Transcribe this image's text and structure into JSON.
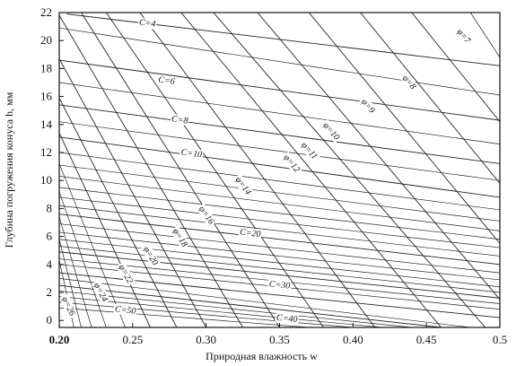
{
  "chart_data": {
    "type": "line",
    "title": "",
    "xlabel": "Природная влажность w",
    "ylabel": "Глубина погружения конуса h, мм",
    "xlim": [
      0.2,
      0.5
    ],
    "ylim": [
      -0.5,
      22
    ],
    "x_ticks": [
      "0.20",
      "0.25",
      "0.30",
      "0.35",
      "0.40",
      "0.45",
      "0.5"
    ],
    "y_ticks": [
      "0",
      "2",
      "4",
      "6",
      "8",
      "10",
      "12",
      "14",
      "16",
      "18",
      "20",
      "22"
    ],
    "grid": false,
    "c_series": [
      {
        "label": "C=4",
        "value": 4,
        "points": [
          [
            0.205,
            21.9
          ],
          [
            0.5,
            18.2
          ]
        ],
        "label_at": [
          0.26,
          21.2
        ]
      },
      {
        "label": "C=6",
        "value": 6,
        "points": [
          [
            0.2,
            18.6
          ],
          [
            0.5,
            14.3
          ]
        ],
        "label_at": [
          0.273,
          17.1
        ]
      },
      {
        "label": "C=8",
        "value": 8,
        "points": [
          [
            0.2,
            15.4
          ],
          [
            0.5,
            11.2
          ]
        ],
        "label_at": [
          0.282,
          14.3
        ]
      },
      {
        "label": "C=10",
        "value": 10,
        "points": [
          [
            0.2,
            13.1
          ],
          [
            0.5,
            8.8
          ]
        ],
        "label_at": [
          0.29,
          11.9
        ]
      },
      {
        "label": "C=20",
        "value": 20,
        "points": [
          [
            0.2,
            7.6
          ],
          [
            0.5,
            4.0
          ]
        ],
        "label_at": [
          0.33,
          6.2
        ]
      },
      {
        "label": "C=30",
        "value": 30,
        "points": [
          [
            0.2,
            4.9
          ],
          [
            0.5,
            1.6
          ]
        ],
        "label_at": [
          0.35,
          2.5
        ]
      },
      {
        "label": "C=40",
        "value": 40,
        "points": [
          [
            0.2,
            3.4
          ],
          [
            0.5,
            0.2
          ]
        ],
        "label_at": [
          0.355,
          0.1
        ]
      },
      {
        "label": "C=50",
        "value": 50,
        "points": [
          [
            0.2,
            2.5
          ],
          [
            0.46,
            -0.5
          ]
        ],
        "label_at": [
          0.245,
          0.7
        ]
      }
    ],
    "phi_series": [
      {
        "label": "φ=7",
        "value": 7,
        "points": [
          [
            0.44,
            22
          ],
          [
            0.5,
            14.2
          ]
        ],
        "label_at": [
          0.475,
          20.3
        ]
      },
      {
        "label": "φ=8",
        "value": 8,
        "points": [
          [
            0.405,
            22
          ],
          [
            0.5,
            9.8
          ]
        ],
        "label_at": [
          0.438,
          17.0
        ]
      },
      {
        "label": "φ=9",
        "value": 9,
        "points": [
          [
            0.37,
            22
          ],
          [
            0.5,
            5.5
          ]
        ],
        "label_at": [
          0.41,
          15.3
        ]
      },
      {
        "label": "φ=10",
        "value": 10,
        "points": [
          [
            0.335,
            22
          ],
          [
            0.5,
            1.5
          ]
        ],
        "label_at": [
          0.385,
          13.5
        ]
      },
      {
        "label": "φ=11",
        "value": 11,
        "points": [
          [
            0.305,
            22
          ],
          [
            0.49,
            -0.5
          ]
        ],
        "label_at": [
          0.37,
          12.1
        ]
      },
      {
        "label": "φ=12",
        "value": 12,
        "points": [
          [
            0.283,
            22
          ],
          [
            0.46,
            -0.5
          ]
        ],
        "label_at": [
          0.358,
          11.2
        ]
      },
      {
        "label": "φ=14",
        "value": 14,
        "points": [
          [
            0.255,
            22
          ],
          [
            0.415,
            -0.5
          ]
        ],
        "label_at": [
          0.325,
          9.6
        ]
      },
      {
        "label": "φ=16",
        "value": 16,
        "points": [
          [
            0.232,
            22
          ],
          [
            0.38,
            -0.5
          ]
        ],
        "label_at": [
          0.3,
          7.5
        ]
      },
      {
        "label": "φ=18",
        "value": 18,
        "points": [
          [
            0.215,
            22
          ],
          [
            0.35,
            -0.5
          ]
        ],
        "label_at": [
          0.282,
          5.9
        ]
      },
      {
        "label": "φ=20",
        "value": 20,
        "points": [
          [
            0.2,
            21.8
          ],
          [
            0.325,
            -0.5
          ]
        ],
        "label_at": [
          0.262,
          4.6
        ]
      },
      {
        "label": "φ=22",
        "value": 22,
        "points": [
          [
            0.2,
            18.7
          ],
          [
            0.3,
            -0.5
          ]
        ],
        "label_at": [
          0.245,
          3.3
        ]
      },
      {
        "label": "φ=24",
        "value": 24,
        "points": [
          [
            0.2,
            15.9
          ],
          [
            0.28,
            -0.5
          ]
        ],
        "label_at": [
          0.228,
          2.0
        ]
      },
      {
        "label": "φ=26",
        "value": 26,
        "points": [
          [
            0.2,
            13.4
          ],
          [
            0.262,
            -0.5
          ]
        ],
        "label_at": [
          0.206,
          1.0
        ]
      }
    ],
    "extra_lines": [
      {
        "points": [
          [
            0.2,
            20.9
          ],
          [
            0.5,
            16.1
          ]
        ]
      },
      {
        "points": [
          [
            0.2,
            17.0
          ],
          [
            0.5,
            12.6
          ]
        ]
      },
      {
        "points": [
          [
            0.2,
            14.2
          ],
          [
            0.5,
            10.0
          ]
        ]
      },
      {
        "points": [
          [
            0.2,
            12.0
          ],
          [
            0.5,
            7.9
          ]
        ]
      },
      {
        "points": [
          [
            0.2,
            11.1
          ],
          [
            0.5,
            7.1
          ]
        ]
      },
      {
        "points": [
          [
            0.2,
            10.3
          ],
          [
            0.5,
            6.4
          ]
        ]
      },
      {
        "points": [
          [
            0.2,
            9.5
          ],
          [
            0.5,
            5.8
          ]
        ]
      },
      {
        "points": [
          [
            0.2,
            8.8
          ],
          [
            0.5,
            5.2
          ]
        ]
      },
      {
        "points": [
          [
            0.2,
            8.2
          ],
          [
            0.5,
            4.6
          ]
        ]
      },
      {
        "points": [
          [
            0.2,
            6.9
          ],
          [
            0.5,
            3.4
          ]
        ]
      },
      {
        "points": [
          [
            0.2,
            6.3
          ],
          [
            0.5,
            2.9
          ]
        ]
      },
      {
        "points": [
          [
            0.2,
            5.8
          ],
          [
            0.5,
            2.4
          ]
        ]
      },
      {
        "points": [
          [
            0.2,
            5.3
          ],
          [
            0.5,
            2.0
          ]
        ]
      },
      {
        "points": [
          [
            0.2,
            4.4
          ],
          [
            0.5,
            1.2
          ]
        ]
      },
      {
        "points": [
          [
            0.2,
            4.0
          ],
          [
            0.5,
            0.8
          ]
        ]
      },
      {
        "points": [
          [
            0.2,
            3.0
          ],
          [
            0.48,
            -0.5
          ]
        ]
      },
      {
        "points": [
          [
            0.2,
            2.1
          ],
          [
            0.44,
            -0.5
          ]
        ]
      },
      {
        "points": [
          [
            0.2,
            1.7
          ],
          [
            0.42,
            -0.5
          ]
        ]
      },
      {
        "points": [
          [
            0.2,
            1.3
          ],
          [
            0.4,
            -0.5
          ]
        ]
      },
      {
        "points": [
          [
            0.2,
            0.9
          ],
          [
            0.37,
            -0.5
          ]
        ]
      },
      {
        "points": [
          [
            0.48,
            22
          ],
          [
            0.5,
            18.8
          ]
        ]
      },
      {
        "points": [
          [
            0.2,
            11.2
          ],
          [
            0.245,
            -0.5
          ]
        ]
      },
      {
        "points": [
          [
            0.2,
            9.2
          ],
          [
            0.232,
            -0.5
          ]
        ]
      },
      {
        "points": [
          [
            0.2,
            7.4
          ],
          [
            0.222,
            -0.5
          ]
        ]
      },
      {
        "points": [
          [
            0.2,
            5.8
          ],
          [
            0.215,
            -0.5
          ]
        ]
      },
      {
        "points": [
          [
            0.2,
            4.3
          ],
          [
            0.21,
            -0.5
          ]
        ]
      }
    ]
  }
}
